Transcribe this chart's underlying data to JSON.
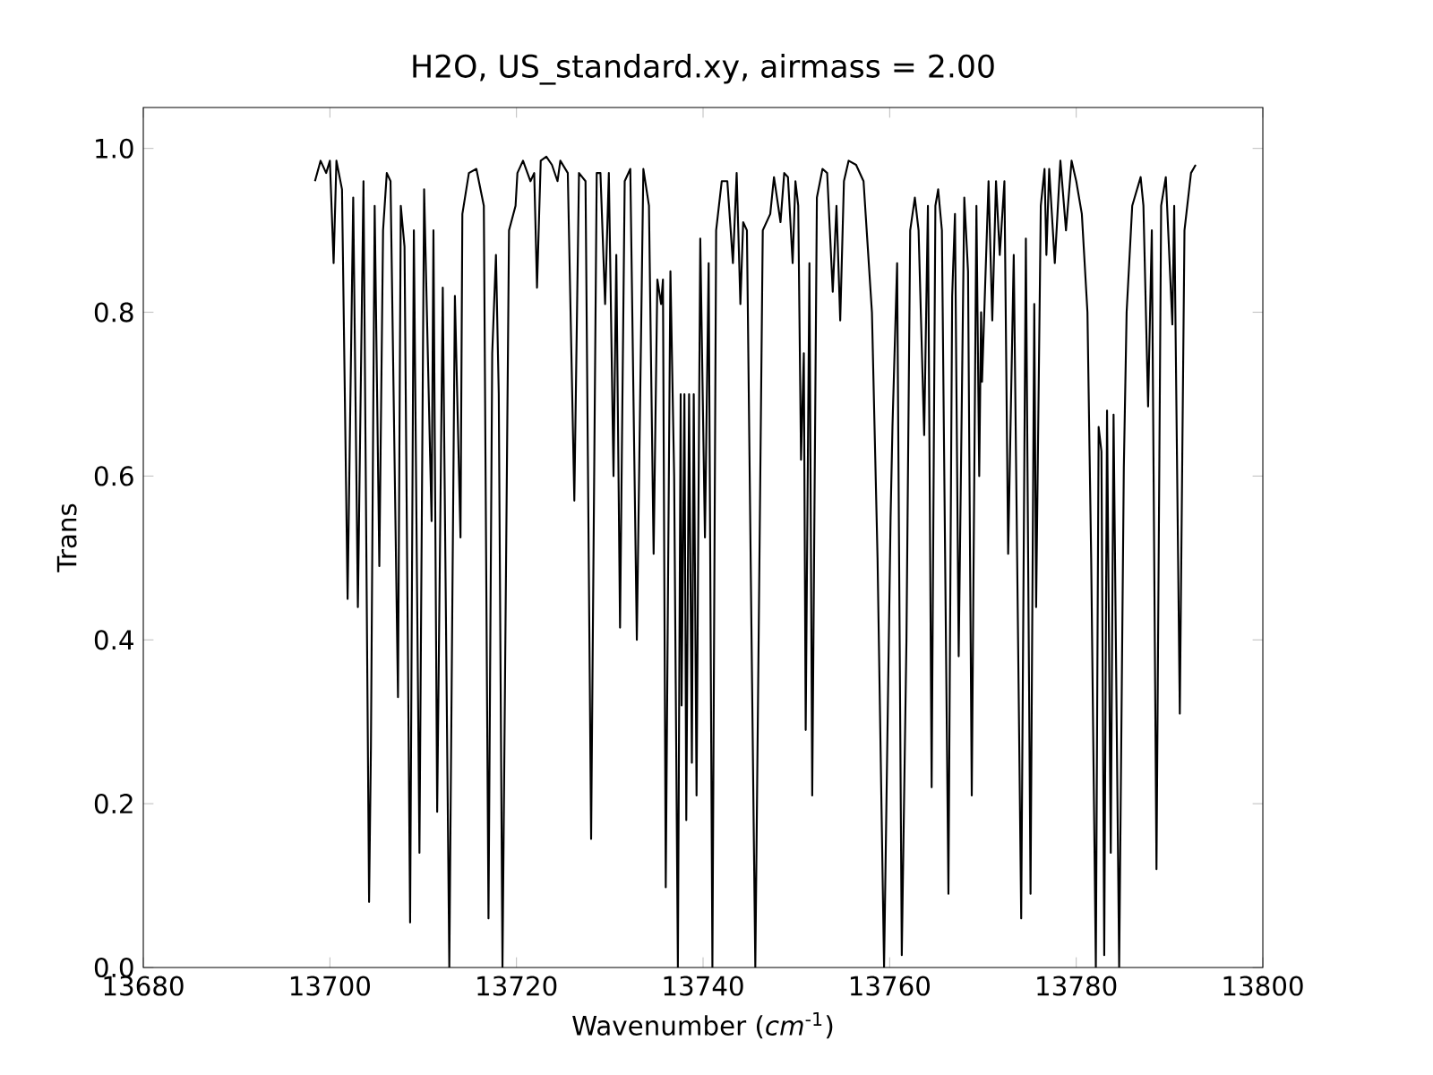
{
  "chart_data": {
    "type": "line",
    "title": "H2O, US_standard.xy, airmass = 2.00",
    "xlabel": "Wavenumber (*cm*$^{-1}$)",
    "ylabel": "Trans",
    "color": "#000000",
    "marker": "none",
    "line_style": "solid",
    "xlim": [
      13680,
      13800
    ],
    "ylim": [
      0,
      1.05
    ],
    "xticks": [
      13680,
      13700,
      13720,
      13740,
      13760,
      13780,
      13800
    ],
    "yticks": [
      {
        "value": 0,
        "label": "0.0"
      },
      {
        "value": 0.2,
        "label": "0.2"
      },
      {
        "value": 0.4,
        "label": "0.4"
      },
      {
        "value": 0.6,
        "label": "0.6"
      },
      {
        "value": 0.8,
        "label": "0.8"
      },
      {
        "value": 1.0,
        "label": "1.0"
      }
    ],
    "x": [
      13698.4,
      13699.0,
      13699.6,
      13700.0,
      13700.4,
      13700.7,
      13701.3,
      13701.9,
      13702.5,
      13703.0,
      13703.6,
      13704.2,
      13704.4,
      13704.8,
      13705.3,
      13705.7,
      13706.1,
      13706.5,
      13707.3,
      13707.6,
      13708.0,
      13708.6,
      13709.0,
      13709.6,
      13710.1,
      13710.9,
      13711.1,
      13711.5,
      13712.1,
      13712.8,
      13713.4,
      13714.0,
      13714.2,
      13714.9,
      13715.7,
      13716.5,
      13717.0,
      13717.4,
      13717.8,
      13718.1,
      13718.5,
      13719.2,
      13719.9,
      13720.1,
      13720.7,
      13721.5,
      13721.9,
      13722.2,
      13722.6,
      13723.2,
      13723.8,
      13724.4,
      13724.7,
      13725.5,
      13726.2,
      13726.7,
      13727.4,
      13728.0,
      13728.6,
      13729.0,
      13729.5,
      13729.9,
      13730.4,
      13730.7,
      13731.1,
      13731.6,
      13732.2,
      13732.9,
      13733.6,
      13734.2,
      13734.7,
      13735.1,
      13735.5,
      13735.7,
      13736.0,
      13736.5,
      13736.9,
      13737.3,
      13737.6,
      13737.7,
      13738.0,
      13738.2,
      13738.5,
      13738.8,
      13739.0,
      13739.3,
      13739.7,
      13740.2,
      13740.6,
      13741.0,
      13741.4,
      13742.0,
      13742.6,
      13743.2,
      13743.6,
      13744.0,
      13744.3,
      13744.7,
      13745.6,
      13746.4,
      13747.2,
      13747.6,
      13748.3,
      13748.7,
      13749.1,
      13749.6,
      13749.9,
      13750.2,
      13750.5,
      13750.8,
      13751.0,
      13751.4,
      13751.7,
      13752.2,
      13752.8,
      13753.3,
      13753.9,
      13754.3,
      13754.7,
      13755.1,
      13755.6,
      13756.4,
      13757.2,
      13758.1,
      13758.7,
      13759.4,
      13760.1,
      13760.3,
      13760.8,
      13761.3,
      13761.8,
      13762.2,
      13762.7,
      13763.1,
      13763.7,
      13764.1,
      13764.5,
      13764.9,
      13765.2,
      13765.6,
      13766.3,
      13766.7,
      13767.0,
      13767.4,
      13768.0,
      13768.4,
      13768.8,
      13769.3,
      13769.6,
      13769.8,
      13769.9,
      13770.6,
      13771.0,
      13771.4,
      13771.8,
      13772.3,
      13772.7,
      13773.3,
      13774.1,
      13774.6,
      13775.1,
      13775.5,
      13775.7,
      13776.2,
      13776.6,
      13776.8,
      13777.1,
      13777.7,
      13778.3,
      13778.9,
      13779.5,
      13780.0,
      13780.6,
      13781.2,
      13781.6,
      13782.1,
      13782.4,
      13782.7,
      13783.0,
      13783.3,
      13783.7,
      13784.0,
      13784.6,
      13785.1,
      13785.4,
      13786.0,
      13786.9,
      13787.2,
      13787.7,
      13788.1,
      13788.6,
      13789.1,
      13789.6,
      13790.3,
      13790.5,
      13791.1,
      13791.6,
      13792.3,
      13792.8
    ],
    "values": [
      0.96,
      0.985,
      0.97,
      0.985,
      0.86,
      0.985,
      0.95,
      0.45,
      0.94,
      0.44,
      0.96,
      0.08,
      0.27,
      0.93,
      0.49,
      0.9,
      0.97,
      0.96,
      0.33,
      0.93,
      0.88,
      0.055,
      0.9,
      0.14,
      0.95,
      0.545,
      0.9,
      0.19,
      0.83,
      0.0,
      0.82,
      0.525,
      0.92,
      0.97,
      0.975,
      0.93,
      0.06,
      0.75,
      0.87,
      0.7,
      0.0,
      0.9,
      0.93,
      0.97,
      0.985,
      0.96,
      0.97,
      0.83,
      0.985,
      0.99,
      0.98,
      0.96,
      0.985,
      0.97,
      0.57,
      0.97,
      0.96,
      0.157,
      0.97,
      0.97,
      0.81,
      0.97,
      0.6,
      0.87,
      0.415,
      0.96,
      0.975,
      0.4,
      0.975,
      0.93,
      0.505,
      0.84,
      0.81,
      0.84,
      0.098,
      0.85,
      0.6,
      0.0,
      0.7,
      0.32,
      0.7,
      0.18,
      0.7,
      0.25,
      0.7,
      0.21,
      0.89,
      0.525,
      0.86,
      0.0,
      0.9,
      0.96,
      0.96,
      0.86,
      0.97,
      0.81,
      0.91,
      0.9,
      0.0,
      0.9,
      0.92,
      0.965,
      0.91,
      0.97,
      0.965,
      0.86,
      0.96,
      0.93,
      0.62,
      0.75,
      0.29,
      0.86,
      0.21,
      0.94,
      0.975,
      0.97,
      0.825,
      0.93,
      0.79,
      0.96,
      0.985,
      0.98,
      0.96,
      0.8,
      0.5,
      0.0,
      0.55,
      0.66,
      0.86,
      0.015,
      0.4,
      0.9,
      0.94,
      0.9,
      0.65,
      0.93,
      0.22,
      0.93,
      0.95,
      0.9,
      0.09,
      0.82,
      0.92,
      0.38,
      0.94,
      0.85,
      0.21,
      0.93,
      0.6,
      0.8,
      0.715,
      0.96,
      0.79,
      0.96,
      0.87,
      0.96,
      0.505,
      0.87,
      0.06,
      0.89,
      0.09,
      0.81,
      0.44,
      0.93,
      0.975,
      0.87,
      0.975,
      0.86,
      0.985,
      0.9,
      0.985,
      0.96,
      0.92,
      0.8,
      0.5,
      0.0,
      0.66,
      0.63,
      0.015,
      0.68,
      0.14,
      0.675,
      0.0,
      0.61,
      0.8,
      0.93,
      0.965,
      0.93,
      0.685,
      0.9,
      0.12,
      0.93,
      0.965,
      0.785,
      0.93,
      0.31,
      0.9,
      0.97,
      0.98
    ]
  }
}
